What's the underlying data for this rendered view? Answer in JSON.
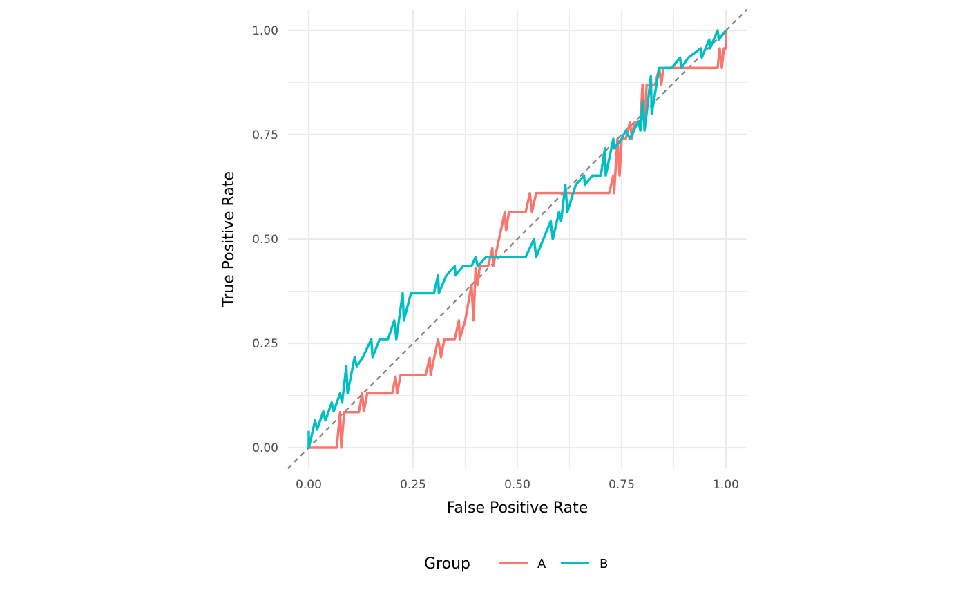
{
  "chart_data": {
    "type": "line",
    "title": "",
    "xlabel": "False Positive Rate",
    "ylabel": "True Positive Rate",
    "xlim": [
      -0.05,
      1.05
    ],
    "ylim": [
      -0.05,
      1.05
    ],
    "xticks": [
      "0.00",
      "0.25",
      "0.50",
      "0.75",
      "1.00"
    ],
    "yticks": [
      "0.00",
      "0.25",
      "0.50",
      "0.75",
      "1.00"
    ],
    "tick_values": [
      0,
      0.25,
      0.5,
      0.75,
      1
    ],
    "grid": true,
    "legend": {
      "title": "Group",
      "placement": "bottom"
    },
    "reference_line": {
      "x": [
        0,
        1
      ],
      "y": [
        0,
        1
      ],
      "style": "dashed",
      "color": "#7f7f7f"
    },
    "series": [
      {
        "name": "A",
        "color": "#F8766D",
        "x": [
          0,
          0.067,
          0.075,
          0.078,
          0.085,
          0.12,
          0.128,
          0.132,
          0.14,
          0.2,
          0.208,
          0.212,
          0.22,
          0.28,
          0.29,
          0.292,
          0.31,
          0.317,
          0.325,
          0.35,
          0.36,
          0.362,
          0.375,
          0.39,
          0.395,
          0.4,
          0.405,
          0.41,
          0.43,
          0.44,
          0.442,
          0.47,
          0.473,
          0.48,
          0.52,
          0.53,
          0.535,
          0.545,
          0.72,
          0.73,
          0.732,
          0.74,
          0.745,
          0.75,
          0.76,
          0.77,
          0.775,
          0.78,
          0.795,
          0.8,
          0.805,
          0.81,
          0.83,
          0.84,
          0.845,
          0.85,
          0.98,
          0.985,
          0.99,
          0.995,
          1,
          1
        ],
        "y": [
          0,
          0,
          0.085,
          0,
          0.085,
          0.085,
          0.13,
          0.087,
          0.13,
          0.13,
          0.17,
          0.13,
          0.174,
          0.174,
          0.215,
          0.174,
          0.26,
          0.217,
          0.26,
          0.26,
          0.305,
          0.26,
          0.305,
          0.39,
          0.305,
          0.43,
          0.39,
          0.435,
          0.435,
          0.478,
          0.435,
          0.565,
          0.52,
          0.565,
          0.565,
          0.61,
          0.565,
          0.61,
          0.61,
          0.652,
          0.61,
          0.74,
          0.652,
          0.74,
          0.74,
          0.78,
          0.74,
          0.78,
          0.78,
          0.87,
          0.78,
          0.87,
          0.87,
          0.91,
          0.87,
          0.91,
          0.91,
          0.957,
          0.91,
          0.957,
          0.957,
          1
        ]
      },
      {
        "name": "B",
        "color": "#00BFC4",
        "x": [
          0,
          0,
          0.005,
          0.015,
          0.02,
          0.035,
          0.04,
          0.055,
          0.06,
          0.075,
          0.08,
          0.09,
          0.093,
          0.11,
          0.115,
          0.13,
          0.15,
          0.153,
          0.17,
          0.19,
          0.205,
          0.21,
          0.225,
          0.228,
          0.245,
          0.3,
          0.31,
          0.312,
          0.33,
          0.35,
          0.352,
          0.37,
          0.39,
          0.4,
          0.405,
          0.425,
          0.52,
          0.54,
          0.545,
          0.58,
          0.585,
          0.6,
          0.605,
          0.615,
          0.62,
          0.64,
          0.66,
          0.662,
          0.68,
          0.7,
          0.71,
          0.712,
          0.73,
          0.732,
          0.75,
          0.76,
          0.77,
          0.79,
          0.795,
          0.8,
          0.805,
          0.82,
          0.822,
          0.84,
          0.87,
          0.89,
          0.893,
          0.91,
          0.94,
          0.942,
          0.96,
          0.962,
          0.98,
          0.983,
          1
        ],
        "y": [
          0.04,
          0,
          0.02,
          0.065,
          0.043,
          0.087,
          0.065,
          0.108,
          0.087,
          0.13,
          0.108,
          0.195,
          0.13,
          0.217,
          0.195,
          0.217,
          0.26,
          0.217,
          0.26,
          0.26,
          0.305,
          0.26,
          0.37,
          0.305,
          0.37,
          0.37,
          0.413,
          0.37,
          0.413,
          0.435,
          0.413,
          0.435,
          0.435,
          0.457,
          0.435,
          0.457,
          0.457,
          0.5,
          0.457,
          0.543,
          0.5,
          0.565,
          0.543,
          0.63,
          0.565,
          0.63,
          0.652,
          0.63,
          0.652,
          0.652,
          0.717,
          0.652,
          0.74,
          0.717,
          0.74,
          0.76,
          0.74,
          0.783,
          0.76,
          0.83,
          0.76,
          0.89,
          0.8,
          0.91,
          0.91,
          0.935,
          0.91,
          0.935,
          0.957,
          0.935,
          0.978,
          0.957,
          1,
          0.978,
          1
        ]
      }
    ]
  }
}
